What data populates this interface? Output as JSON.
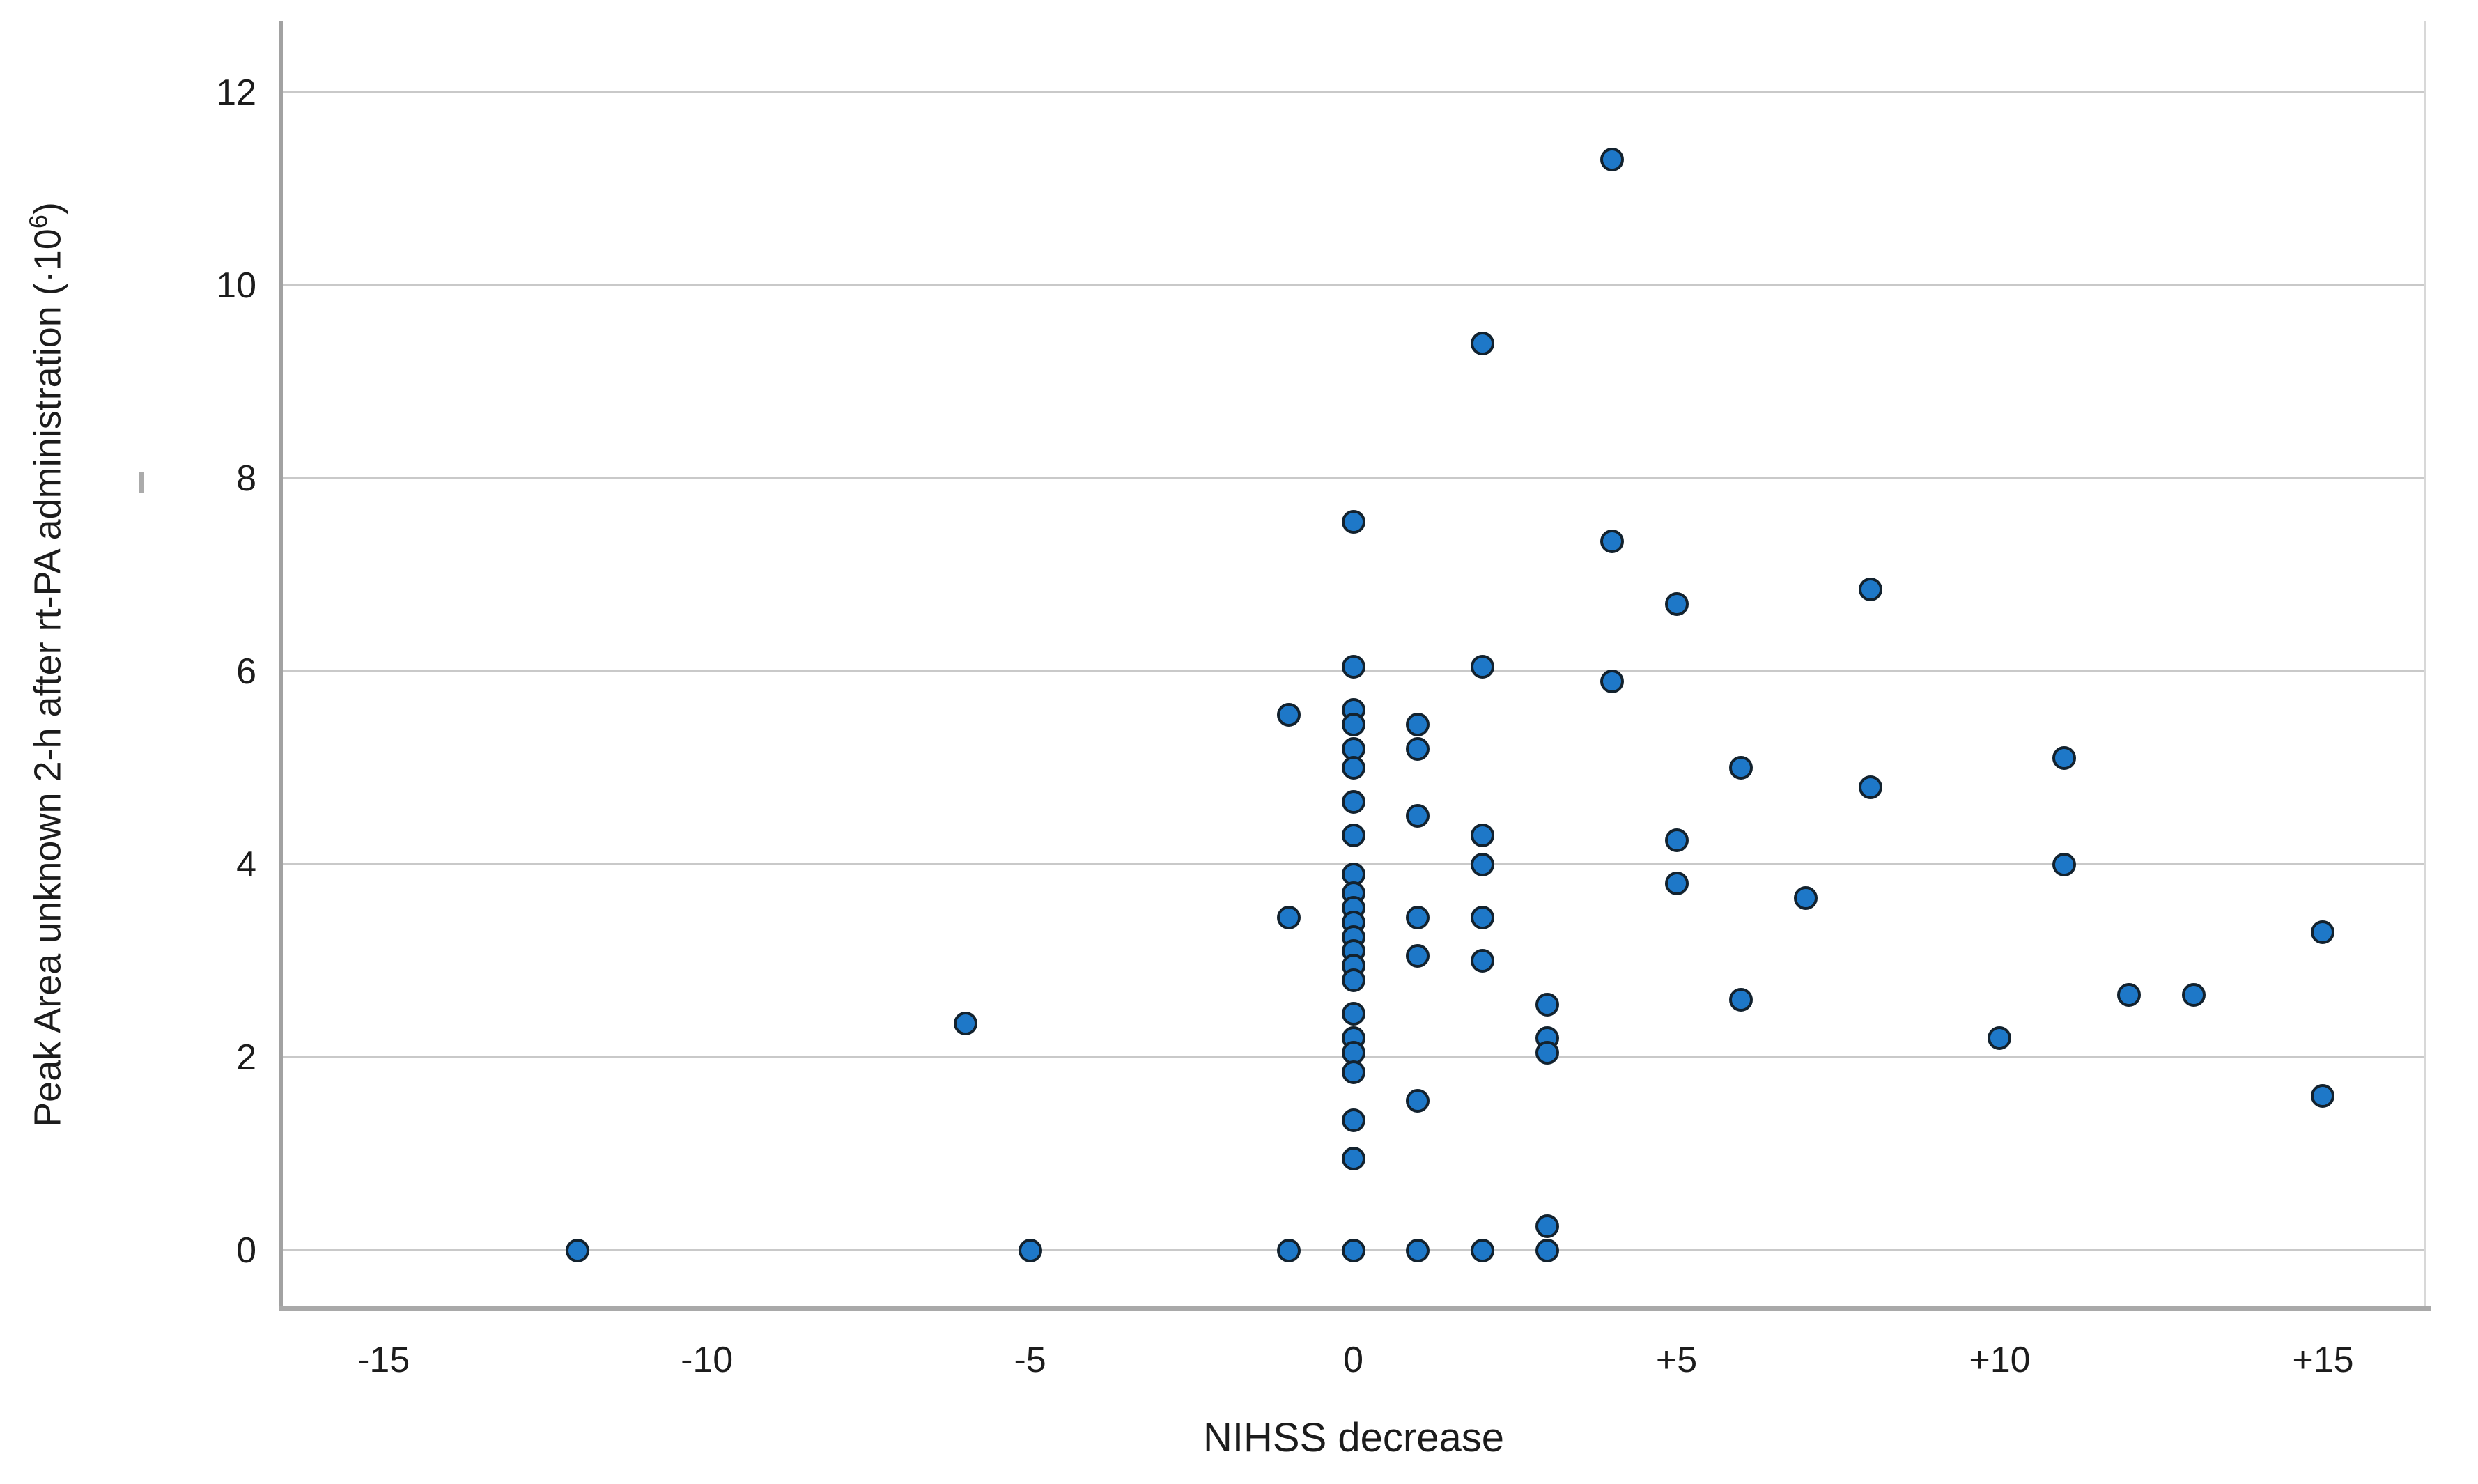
{
  "figure": {
    "background": "#ffffff",
    "text_color": "#1c1c1c",
    "gridline_color": "#c9c9c9",
    "axis_line_color": "#a9a9a9",
    "point_fill_color": "#1e78c8",
    "point_border_color": "#13222e"
  },
  "chart_data": {
    "type": "scatter",
    "title": "",
    "xlabel": "NIHSS decrease",
    "ylabel": "Peak Area unknown 2-h after rt-PA administration (·10⁶)",
    "ylabel_parts": {
      "main": "Peak Area unknown 2-h after rt-PA administration (·10",
      "sup": "6",
      "close": ")"
    },
    "grid": "horizontal",
    "legend": "none",
    "xlim": [
      -16.57,
      16.59
    ],
    "ylim": [
      -0.6,
      12.74
    ],
    "x_ticks": [
      {
        "value": -15,
        "label": "-15"
      },
      {
        "value": -10,
        "label": "-10"
      },
      {
        "value": -5,
        "label": "-5"
      },
      {
        "value": 0,
        "label": "0"
      },
      {
        "value": 5,
        "label": "+5"
      },
      {
        "value": 10,
        "label": "+10"
      },
      {
        "value": 15,
        "label": "+15"
      }
    ],
    "y_ticks": [
      {
        "value": 0,
        "label": "0"
      },
      {
        "value": 2,
        "label": "2"
      },
      {
        "value": 4,
        "label": "4"
      },
      {
        "value": 6,
        "label": "6"
      },
      {
        "value": 8,
        "label": "8"
      },
      {
        "value": 10,
        "label": "10"
      },
      {
        "value": 12,
        "label": "12"
      }
    ],
    "points": [
      {
        "x": -12,
        "y": 0
      },
      {
        "x": -6,
        "y": 2.35
      },
      {
        "x": -5,
        "y": 0
      },
      {
        "x": -1,
        "y": 5.55
      },
      {
        "x": -1,
        "y": 3.45
      },
      {
        "x": -1,
        "y": 0
      },
      {
        "x": 0,
        "y": 7.55
      },
      {
        "x": 0,
        "y": 6.05
      },
      {
        "x": 0,
        "y": 5.6
      },
      {
        "x": 0,
        "y": 5.45
      },
      {
        "x": 0,
        "y": 5.2
      },
      {
        "x": 0,
        "y": 5.0
      },
      {
        "x": 0,
        "y": 4.65
      },
      {
        "x": 0,
        "y": 4.3
      },
      {
        "x": 0,
        "y": 3.9
      },
      {
        "x": 0,
        "y": 3.7
      },
      {
        "x": 0,
        "y": 3.55
      },
      {
        "x": 0,
        "y": 3.4
      },
      {
        "x": 0,
        "y": 3.25
      },
      {
        "x": 0,
        "y": 3.1
      },
      {
        "x": 0,
        "y": 2.95
      },
      {
        "x": 0,
        "y": 2.8
      },
      {
        "x": 0,
        "y": 2.45
      },
      {
        "x": 0,
        "y": 2.2
      },
      {
        "x": 0,
        "y": 2.05
      },
      {
        "x": 0,
        "y": 1.85
      },
      {
        "x": 0,
        "y": 1.35
      },
      {
        "x": 0,
        "y": 0.95
      },
      {
        "x": 0,
        "y": 0
      },
      {
        "x": 1,
        "y": 5.45
      },
      {
        "x": 1,
        "y": 5.2
      },
      {
        "x": 1,
        "y": 4.5
      },
      {
        "x": 1,
        "y": 3.45
      },
      {
        "x": 1,
        "y": 3.05
      },
      {
        "x": 1,
        "y": 1.55
      },
      {
        "x": 1,
        "y": 0
      },
      {
        "x": 2,
        "y": 9.4
      },
      {
        "x": 2,
        "y": 6.05
      },
      {
        "x": 2,
        "y": 4.3
      },
      {
        "x": 2,
        "y": 4.0
      },
      {
        "x": 2,
        "y": 3.45
      },
      {
        "x": 2,
        "y": 3.0
      },
      {
        "x": 2,
        "y": 0
      },
      {
        "x": 3,
        "y": 2.55
      },
      {
        "x": 3,
        "y": 2.2
      },
      {
        "x": 3,
        "y": 2.05
      },
      {
        "x": 3,
        "y": 0.25
      },
      {
        "x": 3,
        "y": 0
      },
      {
        "x": 4,
        "y": 11.3
      },
      {
        "x": 4,
        "y": 7.35
      },
      {
        "x": 4,
        "y": 5.9
      },
      {
        "x": 5,
        "y": 6.7
      },
      {
        "x": 5,
        "y": 4.25
      },
      {
        "x": 5,
        "y": 3.8
      },
      {
        "x": 6,
        "y": 5.0
      },
      {
        "x": 6,
        "y": 2.6
      },
      {
        "x": 7,
        "y": 3.65
      },
      {
        "x": 8,
        "y": 6.85
      },
      {
        "x": 8,
        "y": 4.8
      },
      {
        "x": 10,
        "y": 2.2
      },
      {
        "x": 11,
        "y": 5.1
      },
      {
        "x": 11,
        "y": 4.0
      },
      {
        "x": 12,
        "y": 2.65
      },
      {
        "x": 13,
        "y": 2.65
      },
      {
        "x": 15,
        "y": 3.3
      },
      {
        "x": 15,
        "y": 1.6
      }
    ]
  }
}
